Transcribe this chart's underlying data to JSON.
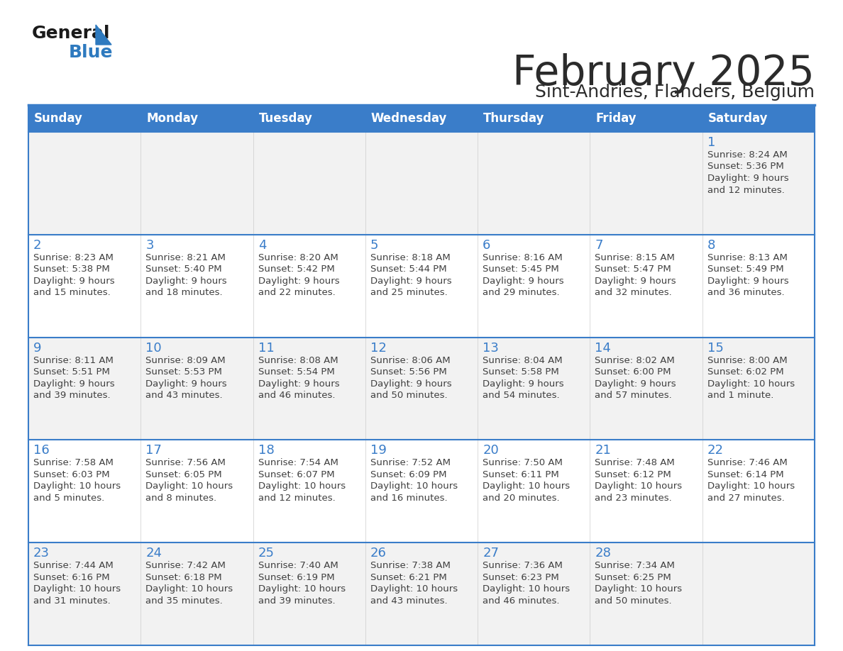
{
  "title": "February 2025",
  "subtitle": "Sint-Andries, Flanders, Belgium",
  "header_color": "#3A7DC9",
  "header_text_color": "#FFFFFF",
  "day_names": [
    "Sunday",
    "Monday",
    "Tuesday",
    "Wednesday",
    "Thursday",
    "Friday",
    "Saturday"
  ],
  "row_colors": [
    "#F2F2F2",
    "#FFFFFF",
    "#F2F2F2",
    "#FFFFFF",
    "#F2F2F2"
  ],
  "separator_color": "#3A7DC9",
  "text_color": "#404040",
  "day_number_color": "#3A7DC9",
  "logo_general_color": "#1A1A1A",
  "logo_blue_color": "#2E7ABF",
  "calendar_data": [
    [
      {
        "day": null,
        "sunrise": null,
        "sunset": null,
        "daylight": null
      },
      {
        "day": null,
        "sunrise": null,
        "sunset": null,
        "daylight": null
      },
      {
        "day": null,
        "sunrise": null,
        "sunset": null,
        "daylight": null
      },
      {
        "day": null,
        "sunrise": null,
        "sunset": null,
        "daylight": null
      },
      {
        "day": null,
        "sunrise": null,
        "sunset": null,
        "daylight": null
      },
      {
        "day": null,
        "sunrise": null,
        "sunset": null,
        "daylight": null
      },
      {
        "day": 1,
        "sunrise": "8:24 AM",
        "sunset": "5:36 PM",
        "daylight": "9 hours\nand 12 minutes."
      }
    ],
    [
      {
        "day": 2,
        "sunrise": "8:23 AM",
        "sunset": "5:38 PM",
        "daylight": "9 hours\nand 15 minutes."
      },
      {
        "day": 3,
        "sunrise": "8:21 AM",
        "sunset": "5:40 PM",
        "daylight": "9 hours\nand 18 minutes."
      },
      {
        "day": 4,
        "sunrise": "8:20 AM",
        "sunset": "5:42 PM",
        "daylight": "9 hours\nand 22 minutes."
      },
      {
        "day": 5,
        "sunrise": "8:18 AM",
        "sunset": "5:44 PM",
        "daylight": "9 hours\nand 25 minutes."
      },
      {
        "day": 6,
        "sunrise": "8:16 AM",
        "sunset": "5:45 PM",
        "daylight": "9 hours\nand 29 minutes."
      },
      {
        "day": 7,
        "sunrise": "8:15 AM",
        "sunset": "5:47 PM",
        "daylight": "9 hours\nand 32 minutes."
      },
      {
        "day": 8,
        "sunrise": "8:13 AM",
        "sunset": "5:49 PM",
        "daylight": "9 hours\nand 36 minutes."
      }
    ],
    [
      {
        "day": 9,
        "sunrise": "8:11 AM",
        "sunset": "5:51 PM",
        "daylight": "9 hours\nand 39 minutes."
      },
      {
        "day": 10,
        "sunrise": "8:09 AM",
        "sunset": "5:53 PM",
        "daylight": "9 hours\nand 43 minutes."
      },
      {
        "day": 11,
        "sunrise": "8:08 AM",
        "sunset": "5:54 PM",
        "daylight": "9 hours\nand 46 minutes."
      },
      {
        "day": 12,
        "sunrise": "8:06 AM",
        "sunset": "5:56 PM",
        "daylight": "9 hours\nand 50 minutes."
      },
      {
        "day": 13,
        "sunrise": "8:04 AM",
        "sunset": "5:58 PM",
        "daylight": "9 hours\nand 54 minutes."
      },
      {
        "day": 14,
        "sunrise": "8:02 AM",
        "sunset": "6:00 PM",
        "daylight": "9 hours\nand 57 minutes."
      },
      {
        "day": 15,
        "sunrise": "8:00 AM",
        "sunset": "6:02 PM",
        "daylight": "10 hours\nand 1 minute."
      }
    ],
    [
      {
        "day": 16,
        "sunrise": "7:58 AM",
        "sunset": "6:03 PM",
        "daylight": "10 hours\nand 5 minutes."
      },
      {
        "day": 17,
        "sunrise": "7:56 AM",
        "sunset": "6:05 PM",
        "daylight": "10 hours\nand 8 minutes."
      },
      {
        "day": 18,
        "sunrise": "7:54 AM",
        "sunset": "6:07 PM",
        "daylight": "10 hours\nand 12 minutes."
      },
      {
        "day": 19,
        "sunrise": "7:52 AM",
        "sunset": "6:09 PM",
        "daylight": "10 hours\nand 16 minutes."
      },
      {
        "day": 20,
        "sunrise": "7:50 AM",
        "sunset": "6:11 PM",
        "daylight": "10 hours\nand 20 minutes."
      },
      {
        "day": 21,
        "sunrise": "7:48 AM",
        "sunset": "6:12 PM",
        "daylight": "10 hours\nand 23 minutes."
      },
      {
        "day": 22,
        "sunrise": "7:46 AM",
        "sunset": "6:14 PM",
        "daylight": "10 hours\nand 27 minutes."
      }
    ],
    [
      {
        "day": 23,
        "sunrise": "7:44 AM",
        "sunset": "6:16 PM",
        "daylight": "10 hours\nand 31 minutes."
      },
      {
        "day": 24,
        "sunrise": "7:42 AM",
        "sunset": "6:18 PM",
        "daylight": "10 hours\nand 35 minutes."
      },
      {
        "day": 25,
        "sunrise": "7:40 AM",
        "sunset": "6:19 PM",
        "daylight": "10 hours\nand 39 minutes."
      },
      {
        "day": 26,
        "sunrise": "7:38 AM",
        "sunset": "6:21 PM",
        "daylight": "10 hours\nand 43 minutes."
      },
      {
        "day": 27,
        "sunrise": "7:36 AM",
        "sunset": "6:23 PM",
        "daylight": "10 hours\nand 46 minutes."
      },
      {
        "day": 28,
        "sunrise": "7:34 AM",
        "sunset": "6:25 PM",
        "daylight": "10 hours\nand 50 minutes."
      },
      {
        "day": null,
        "sunrise": null,
        "sunset": null,
        "daylight": null
      }
    ]
  ]
}
